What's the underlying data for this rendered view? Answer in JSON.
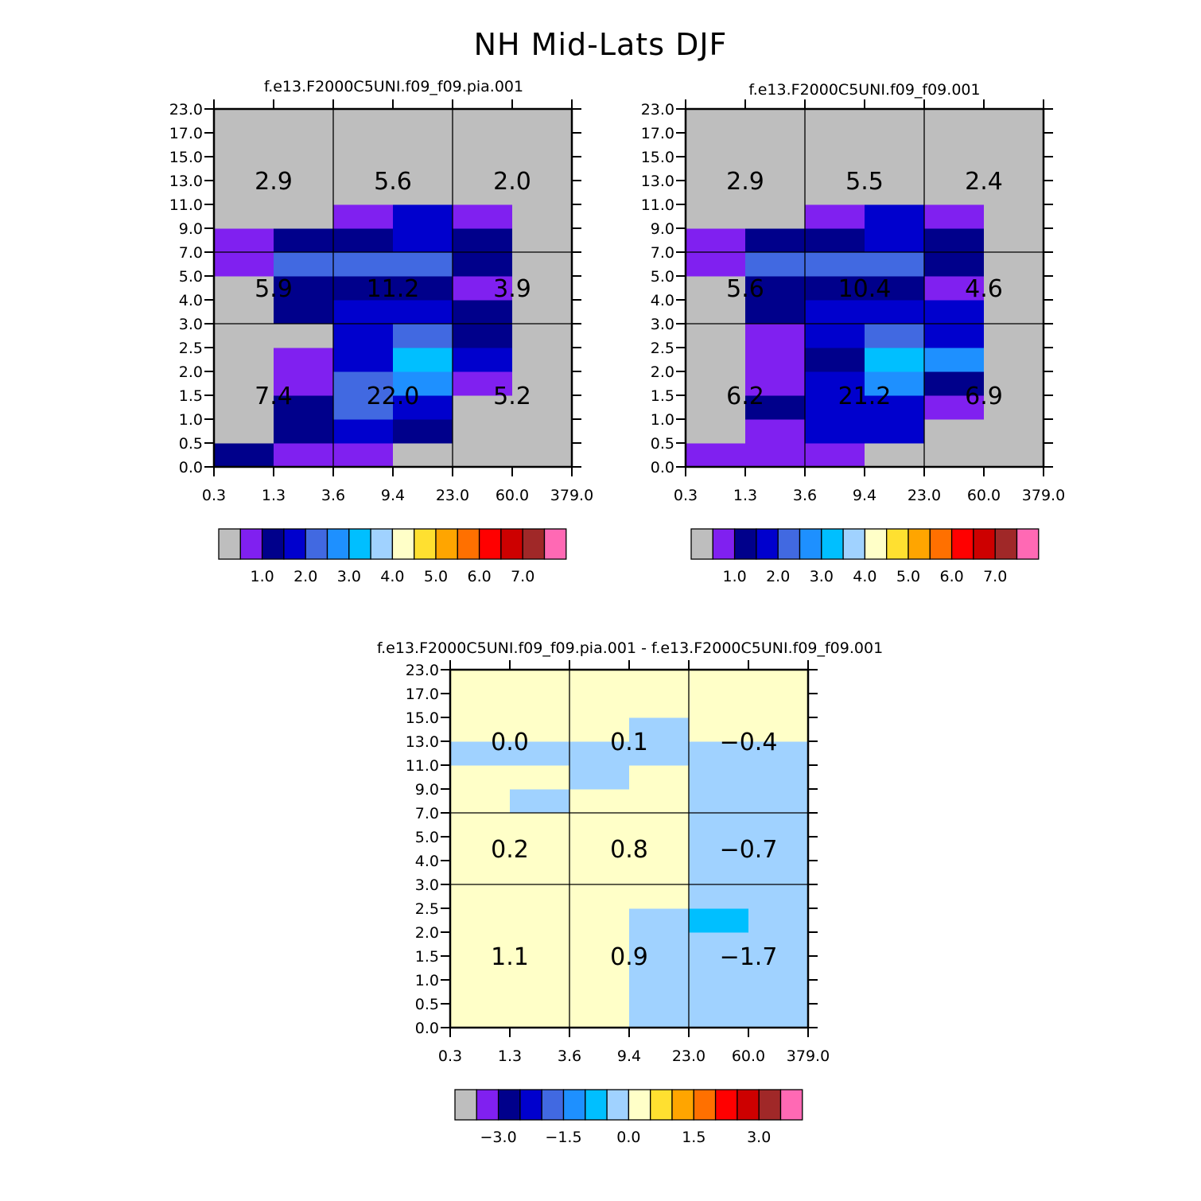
{
  "title": "NH Mid-Lats DJF",
  "colors": {
    "background": "#ffffff",
    "palette": [
      "#bebebe",
      "#8020f0",
      "#00008b",
      "#0000cd",
      "#4169e1",
      "#1e90ff",
      "#00bfff",
      "#a0d2ff",
      "#ffffc8",
      "#ffe030",
      "#ffa500",
      "#ff7000",
      "#ff0000",
      "#cd0000",
      "#a02828",
      "#ff69b4"
    ]
  },
  "chart_data": [
    {
      "type": "heatmap",
      "title": "f.e13.F2000C5UNI.f09_f09.pia.001",
      "x_tick_labels": [
        "0.3",
        "1.3",
        "3.6",
        "9.4",
        "23.0",
        "60.0",
        "379.0"
      ],
      "y_tick_labels": [
        "0.0",
        "0.5",
        "1.0",
        "1.5",
        "2.0",
        "2.5",
        "3.0",
        "4.0",
        "5.0",
        "7.0",
        "9.0",
        "11.0",
        "13.0",
        "15.0",
        "17.0",
        "23.0"
      ],
      "group_values": [
        [
          "7.4",
          "22.0",
          "5.2"
        ],
        [
          "5.9",
          "11.2",
          "3.9"
        ],
        [
          "2.9",
          "5.6",
          "2.0"
        ]
      ],
      "cells": [
        [
          2,
          1,
          1,
          0,
          0,
          0
        ],
        [
          0,
          2,
          3,
          2,
          0,
          0
        ],
        [
          0,
          2,
          4,
          3,
          0,
          0
        ],
        [
          0,
          1,
          4,
          5,
          1,
          0
        ],
        [
          0,
          1,
          3,
          6,
          3,
          0
        ],
        [
          0,
          0,
          3,
          4,
          2,
          0
        ],
        [
          0,
          2,
          3,
          3,
          2,
          0
        ],
        [
          0,
          2,
          2,
          2,
          1,
          0
        ],
        [
          1,
          4,
          4,
          4,
          2,
          0
        ],
        [
          1,
          2,
          2,
          3,
          2,
          0
        ],
        [
          0,
          0,
          1,
          3,
          1,
          0
        ],
        [
          0,
          0,
          0,
          0,
          0,
          0
        ],
        [
          0,
          0,
          0,
          0,
          0,
          0
        ],
        [
          0,
          0,
          0,
          0,
          0,
          0
        ],
        [
          0,
          0,
          0,
          0,
          0,
          0
        ]
      ],
      "colorbar_labels": [
        "1.0",
        "2.0",
        "3.0",
        "4.0",
        "5.0",
        "6.0",
        "7.0"
      ]
    },
    {
      "type": "heatmap",
      "title": "f.e13.F2000C5UNI.f09_f09.001",
      "x_tick_labels": [
        "0.3",
        "1.3",
        "3.6",
        "9.4",
        "23.0",
        "60.0",
        "379.0"
      ],
      "y_tick_labels": [
        "0.0",
        "0.5",
        "1.0",
        "1.5",
        "2.0",
        "2.5",
        "3.0",
        "4.0",
        "5.0",
        "7.0",
        "9.0",
        "11.0",
        "13.0",
        "15.0",
        "17.0",
        "23.0"
      ],
      "group_values": [
        [
          "6.2",
          "21.2",
          "6.9"
        ],
        [
          "5.6",
          "10.4",
          "4.6"
        ],
        [
          "2.9",
          "5.5",
          "2.4"
        ]
      ],
      "cells": [
        [
          1,
          1,
          1,
          0,
          0,
          0
        ],
        [
          0,
          1,
          3,
          3,
          0,
          0
        ],
        [
          0,
          2,
          3,
          3,
          1,
          0
        ],
        [
          0,
          1,
          3,
          5,
          2,
          0
        ],
        [
          0,
          1,
          2,
          6,
          5,
          0
        ],
        [
          0,
          1,
          3,
          4,
          3,
          0
        ],
        [
          0,
          2,
          3,
          3,
          3,
          0
        ],
        [
          0,
          2,
          2,
          2,
          1,
          0
        ],
        [
          1,
          4,
          4,
          4,
          2,
          0
        ],
        [
          1,
          2,
          2,
          3,
          2,
          0
        ],
        [
          0,
          0,
          1,
          3,
          1,
          0
        ],
        [
          0,
          0,
          0,
          0,
          0,
          0
        ],
        [
          0,
          0,
          0,
          0,
          0,
          0
        ],
        [
          0,
          0,
          0,
          0,
          0,
          0
        ],
        [
          0,
          0,
          0,
          0,
          0,
          0
        ]
      ],
      "colorbar_labels": [
        "1.0",
        "2.0",
        "3.0",
        "4.0",
        "5.0",
        "6.0",
        "7.0"
      ]
    },
    {
      "type": "heatmap",
      "title": "f.e13.F2000C5UNI.f09_f09.pia.001 - f.e13.F2000C5UNI.f09_f09.001",
      "x_tick_labels": [
        "0.3",
        "1.3",
        "3.6",
        "9.4",
        "23.0",
        "60.0",
        "379.0"
      ],
      "y_tick_labels": [
        "0.0",
        "0.5",
        "1.0",
        "1.5",
        "2.0",
        "2.5",
        "3.0",
        "4.0",
        "5.0",
        "7.0",
        "9.0",
        "11.0",
        "13.0",
        "15.0",
        "17.0",
        "23.0"
      ],
      "group_values": [
        [
          "1.1",
          "0.9",
          "-1.7"
        ],
        [
          "0.2",
          "0.8",
          "-0.7"
        ],
        [
          "0.0",
          "0.1",
          "-0.4"
        ]
      ],
      "cells": [
        [
          8,
          8,
          8,
          7,
          7,
          7
        ],
        [
          8,
          8,
          8,
          7,
          7,
          7
        ],
        [
          8,
          8,
          8,
          7,
          7,
          7
        ],
        [
          8,
          8,
          8,
          7,
          7,
          7
        ],
        [
          8,
          8,
          8,
          7,
          6,
          7
        ],
        [
          8,
          8,
          8,
          8,
          7,
          7
        ],
        [
          8,
          8,
          8,
          8,
          7,
          7
        ],
        [
          8,
          8,
          8,
          8,
          7,
          7
        ],
        [
          8,
          8,
          8,
          8,
          7,
          7
        ],
        [
          8,
          7,
          8,
          8,
          7,
          7
        ],
        [
          8,
          8,
          7,
          8,
          7,
          7
        ],
        [
          7,
          7,
          7,
          7,
          7,
          7
        ],
        [
          8,
          8,
          8,
          7,
          8,
          8
        ],
        [
          8,
          8,
          8,
          8,
          8,
          8
        ],
        [
          8,
          8,
          8,
          8,
          8,
          8
        ]
      ],
      "colorbar_labels": [
        "-3.0",
        "-1.5",
        "0.0",
        "1.5",
        "3.0"
      ]
    }
  ]
}
